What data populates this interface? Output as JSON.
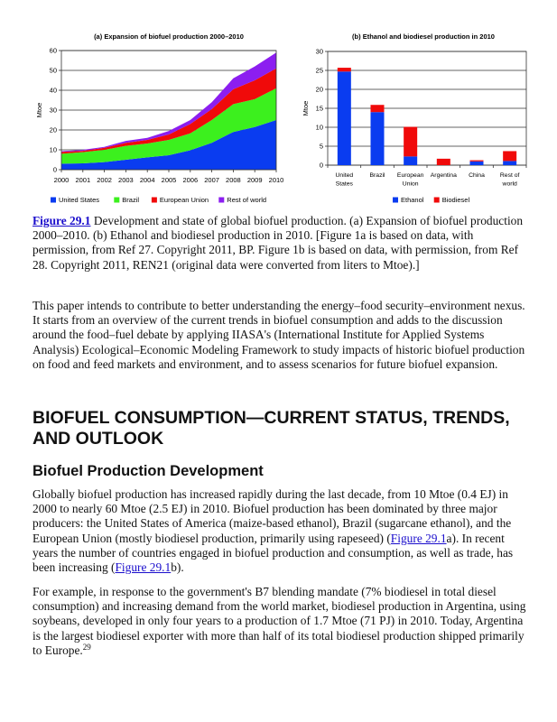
{
  "chart_data": [
    {
      "type": "area",
      "stacked": true,
      "title": "(a) Expansion of biofuel production 2000–2010",
      "xlabel": "",
      "ylabel": "Mtoe",
      "x": [
        "2000",
        "2001",
        "2002",
        "2003",
        "2004",
        "2005",
        "2006",
        "2007",
        "2008",
        "2009",
        "2010"
      ],
      "ylim": [
        0,
        60
      ],
      "yticks": [
        0,
        10,
        20,
        30,
        40,
        50,
        60
      ],
      "grid": true,
      "legend_placement": "bottom",
      "series": [
        {
          "name": "United States",
          "color": "#0a3cf0",
          "values": [
            3,
            3.2,
            3.8,
            5,
            6.2,
            7.3,
            9.8,
            13.5,
            19,
            21.5,
            25
          ]
        },
        {
          "name": "Brazil",
          "color": "#3cf01e",
          "values": [
            5,
            5.6,
            6.2,
            7,
            7,
            7.7,
            8.5,
            11.5,
            14,
            14,
            16
          ]
        },
        {
          "name": "European Union",
          "color": "#f00a0a",
          "values": [
            1,
            0.7,
            1,
            1.5,
            1.8,
            2.7,
            4.7,
            5.5,
            7.5,
            9.5,
            10
          ]
        },
        {
          "name": "Rest of world",
          "color": "#8c1ef0",
          "values": [
            0.3,
            0.5,
            0.5,
            1,
            1,
            1.8,
            2,
            3.5,
            5.5,
            7,
            8
          ]
        }
      ]
    },
    {
      "type": "bar",
      "stacked": true,
      "title": "(b) Ethanol and biodiesel production in 2010",
      "xlabel": "",
      "ylabel": "Mtoe",
      "categories": [
        [
          "United",
          "States"
        ],
        [
          "Brazil"
        ],
        [
          "European",
          "Union"
        ],
        [
          "Argentina"
        ],
        [
          "China"
        ],
        [
          "Rest of",
          "world"
        ]
      ],
      "ylim": [
        0,
        30
      ],
      "yticks": [
        0,
        5,
        10,
        15,
        20,
        25,
        30
      ],
      "grid": true,
      "legend_placement": "bottom",
      "series": [
        {
          "name": "Ethanol",
          "color": "#0a3cf0",
          "values": [
            24.7,
            14,
            2.3,
            0,
            1,
            1.1
          ]
        },
        {
          "name": "Biodiesel",
          "color": "#f00a0a",
          "values": [
            1,
            1.9,
            7.8,
            1.7,
            0.3,
            2.6
          ]
        }
      ]
    }
  ],
  "caption": {
    "label": "Figure 29.1",
    "text": " Development and state of global biofuel production. (a) Expansion of biofuel production 2000–2010. (b) Ethanol and biodiesel production in 2010. [Figure 1a is based on data, with permission, from Ref 27. Copyright 2011, BP. Figure 1b is based on data, with permission, from Ref 28. Copyright 2011, REN21 (original data were converted from liters to Mtoe).]"
  },
  "intro": "This paper intends to contribute to better understanding the energy–food security–environment nexus. It starts from an overview of the current trends in biofuel consumption and adds to the discussion around the food–fuel debate by applying IIASA's (International Institute for Applied Systems Analysis) Ecological–Economic Modeling Framework to study impacts of historic biofuel production on food and feed markets and environment, and to assess scenarios for future biofuel expansion.",
  "section_heading": "BIOFUEL CONSUMPTION—CURRENT STATUS, TRENDS, AND OUTLOOK",
  "subsection_heading": "Biofuel Production Development",
  "para1": {
    "t1": "Globally biofuel production has increased rapidly during the last decade, from 10 Mtoe (0.4 EJ) in 2000 to nearly 60 Mtoe (2.5 EJ) in 2010. Biofuel production has been dominated by three major producers: the United States of America (maize-based ethanol), Brazil (sugarcane ethanol), and the European Union (mostly biodiesel production, primarily using rapeseed) (",
    "link1": "Figure 29.1",
    "t2": "a). In recent years the number of countries engaged in biofuel production and consumption, as well as trade, has been increasing (",
    "link2": "Figure 29.1",
    "t3": "b)."
  },
  "para2": {
    "text": "For example, in response to the government's B7 blending mandate (7% biodiesel in total diesel consumption) and increasing demand from the world market, biodiesel production in Argentina, using soybeans, developed in only four years to a production of 1.7 Mtoe (71 PJ) in 2010. Today, Argentina is the largest biodiesel exporter with more than half of its total biodiesel production shipped primarily to Europe.",
    "ref": "29"
  }
}
